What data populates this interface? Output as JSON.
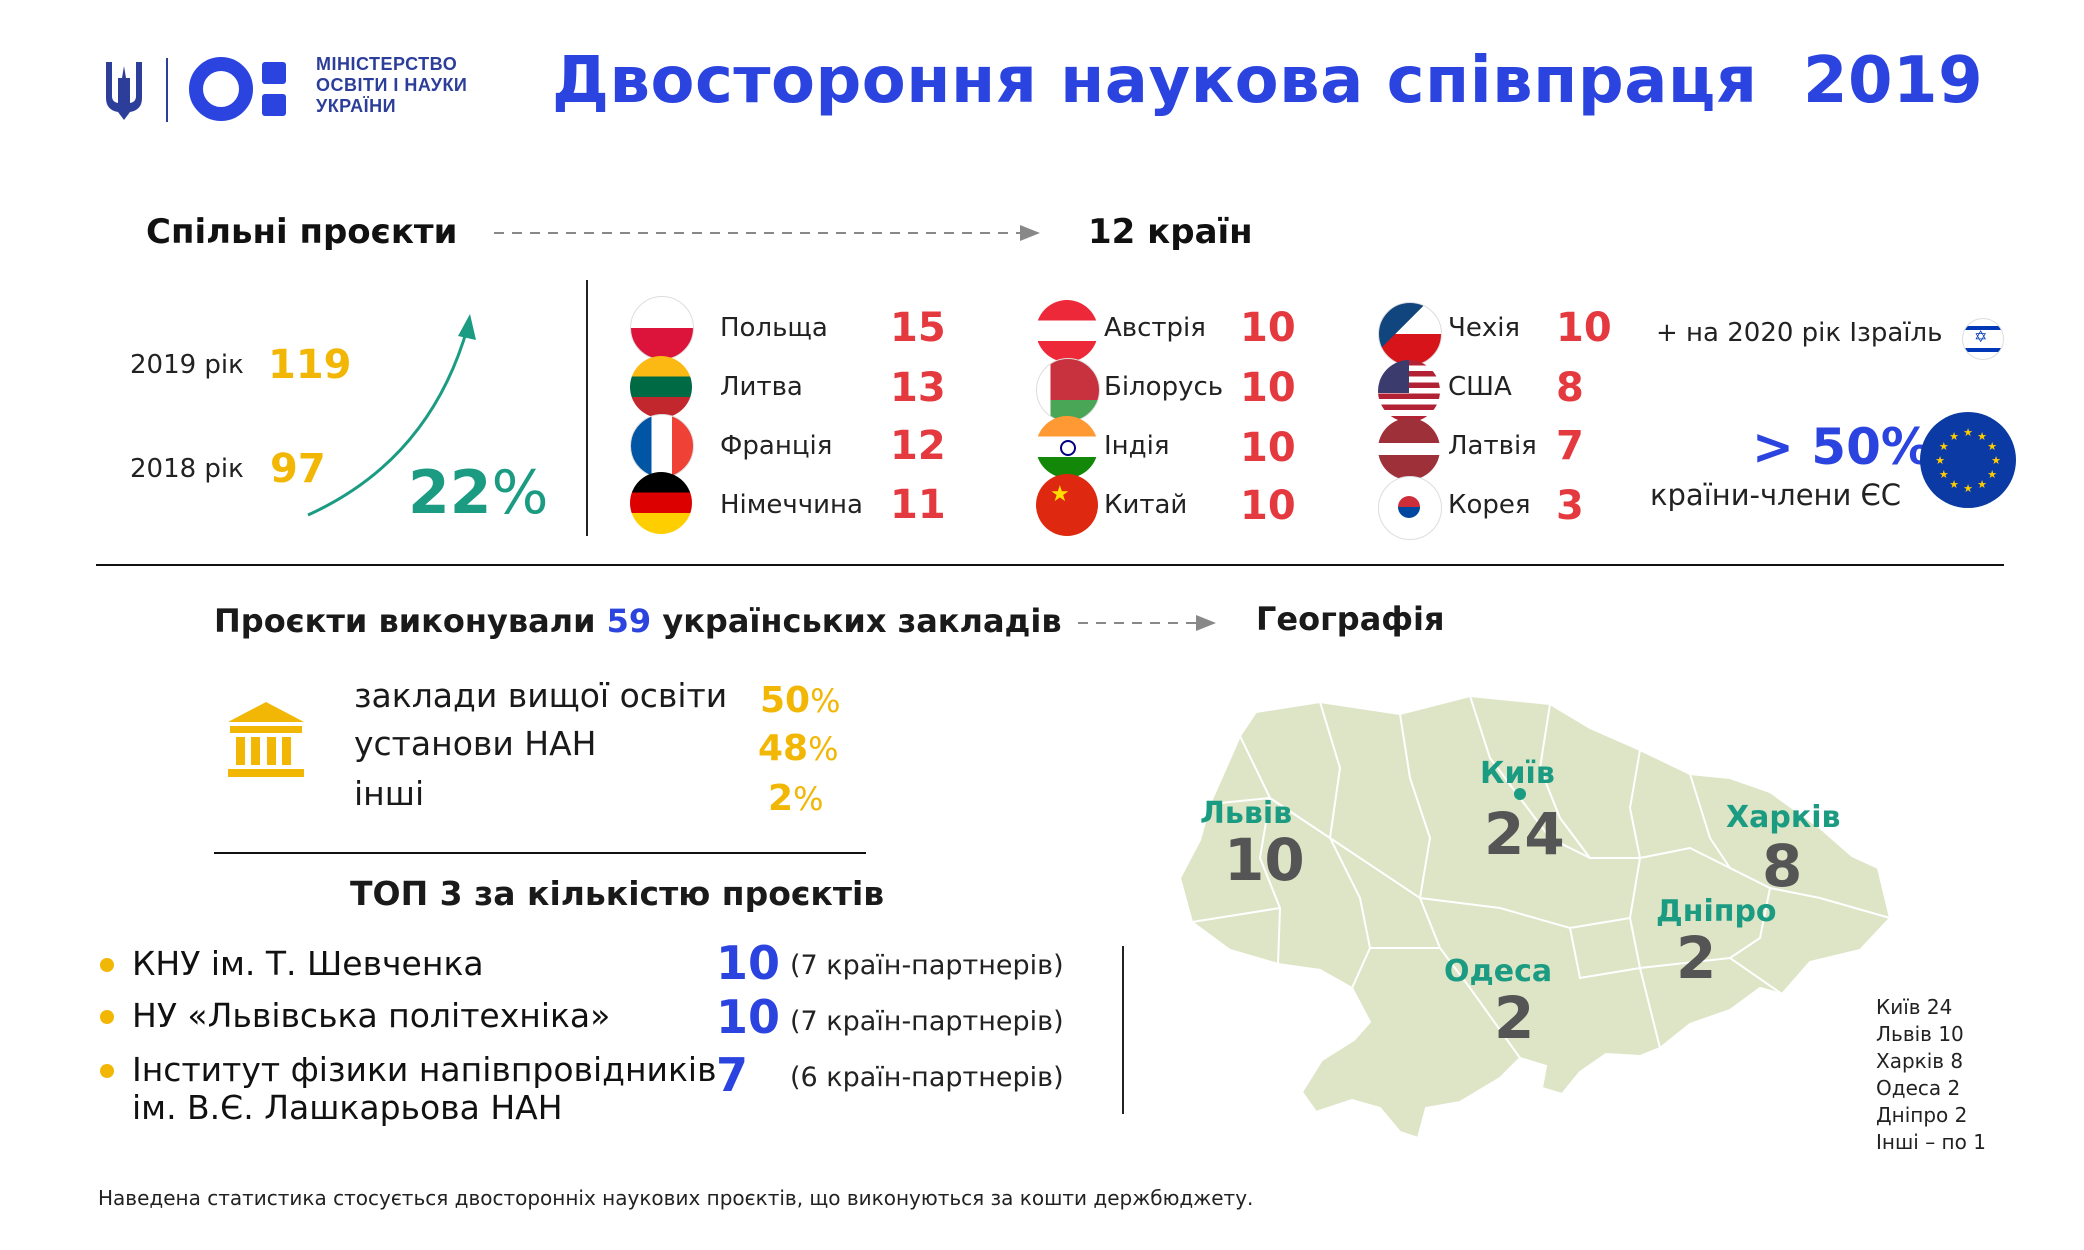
{
  "logo": {
    "line1": "МІНІСТЕРСТВО",
    "line2": "ОСВІТИ І НАУКИ",
    "line3": "УКРАЇНИ"
  },
  "title": "Двостороння наукова співпраця  2019",
  "projects": {
    "heading": "Спільні проєкти",
    "countries_total": "12 країн",
    "year_2019_label": "2019 рік",
    "year_2019_value": "119",
    "year_2018_label": "2018 рік",
    "year_2018_value": "97",
    "growth": "22",
    "growth_unit": "%"
  },
  "countries": [
    {
      "name": "Польща",
      "value": "15",
      "flag": "poland-flag-icon"
    },
    {
      "name": "Литва",
      "value": "13",
      "flag": "lithuania-flag-icon"
    },
    {
      "name": "Франція",
      "value": "12",
      "flag": "france-flag-icon"
    },
    {
      "name": "Німеччина",
      "value": "11",
      "flag": "germany-flag-icon"
    },
    {
      "name": "Австрія",
      "value": "10",
      "flag": "austria-flag-icon"
    },
    {
      "name": "Білорусь",
      "value": "10",
      "flag": "belarus-flag-icon"
    },
    {
      "name": "Індія",
      "value": "10",
      "flag": "india-flag-icon"
    },
    {
      "name": "Китай",
      "value": "10",
      "flag": "china-flag-icon"
    },
    {
      "name": "Чехія",
      "value": "10",
      "flag": "czech-flag-icon"
    },
    {
      "name": "США",
      "value": "8",
      "flag": "usa-flag-icon"
    },
    {
      "name": "Латвія",
      "value": "7",
      "flag": "latvia-flag-icon"
    },
    {
      "name": "Корея",
      "value": "3",
      "flag": "korea-flag-icon"
    }
  ],
  "israel_note": "+ на 2020 рік Ізраїль",
  "eu": {
    "value": "> 50%",
    "label": "країни-члени ЄС"
  },
  "institutions": {
    "heading_pre": "Проєкти виконували",
    "heading_num": "59",
    "heading_post": "українських закладів",
    "geography": "Географія",
    "rows": [
      {
        "label": "заклади вищої освіти",
        "value": "50",
        "unit": "%"
      },
      {
        "label": "установи НАН",
        "value": "48",
        "unit": "%"
      },
      {
        "label": "інші",
        "value": "2",
        "unit": "%"
      }
    ]
  },
  "top3": {
    "heading": "ТОП 3 за кількістю проєктів",
    "items": [
      {
        "name": "КНУ ім. Т. Шевченка",
        "name2": "",
        "value": "10",
        "partners": "(7 країн-партнерів)"
      },
      {
        "name": "НУ «Львівська політехніка»",
        "name2": "",
        "value": "10",
        "partners": "(7 країн-партнерів)"
      },
      {
        "name": "Інститут фізики напівпровідників",
        "name2": "ім. В.Є. Лашкарьова НАН",
        "value": "7",
        "partners": "(6 країн-партнерів)"
      }
    ]
  },
  "map": {
    "cities": [
      {
        "name": "Львів",
        "value": "10"
      },
      {
        "name": "Київ",
        "value": "24"
      },
      {
        "name": "Харків",
        "value": "8"
      },
      {
        "name": "Дніпро",
        "value": "2"
      },
      {
        "name": "Одеса",
        "value": "2"
      }
    ],
    "legend": [
      "Київ 24",
      "Львів 10",
      "Харків 8",
      "Одеса 2",
      "Дніпро 2",
      "Інші – по 1"
    ]
  },
  "footnote": "Наведена статистика стосується двосторонніх наукових проєктів, що виконуються за кошти держбюджету.",
  "colors": {
    "title_blue": "#2b44e0",
    "yellow": "#f2b705",
    "red": "#e4393f",
    "teal": "#1a9b82",
    "map_fill": "#dde5c6"
  }
}
